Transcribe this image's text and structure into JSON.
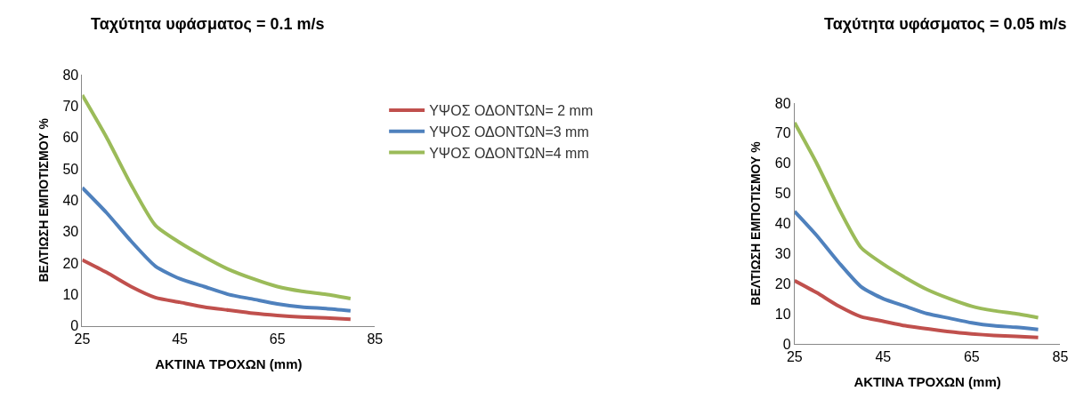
{
  "chart_data": [
    {
      "type": "line",
      "title": "Ταχύτητα υφάσματος = 0.1 m/s",
      "xlabel": "ΑΚΤΙΝΑ ΤΡΟΧΩΝ (mm)",
      "ylabel": "ΒΕΛΤΙΩΣΗ ΕΜΠΟΤΙΣΜΟΥ %",
      "x": [
        25,
        30,
        35,
        40,
        45,
        50,
        55,
        60,
        65,
        70,
        75,
        80
      ],
      "xlim": [
        25,
        85
      ],
      "xticks": [
        25,
        45,
        65,
        85
      ],
      "ylim": [
        0,
        80
      ],
      "yticks": [
        0,
        10,
        20,
        30,
        40,
        50,
        60,
        70,
        80
      ],
      "grid": false,
      "legend": "right",
      "marker": "none",
      "line_style": "solid",
      "series": [
        {
          "name": "ΥΨΟΣ ΟΔΟΝΤΩΝ= 2 mm",
          "color": "#c0504d",
          "values": [
            21,
            17,
            12.5,
            9,
            7.5,
            6,
            5,
            4,
            3.3,
            2.8,
            2.5,
            2.1
          ]
        },
        {
          "name": "ΥΨΟΣ ΟΔΟΝΤΩΝ=3 mm",
          "color": "#4f81bd",
          "values": [
            44,
            36,
            27,
            19,
            15,
            12.5,
            10,
            8.5,
            7,
            6,
            5.5,
            4.8
          ]
        },
        {
          "name": "ΥΨΟΣ ΟΔΟΝΤΩΝ=4 mm",
          "color": "#9bbb59",
          "values": [
            73.5,
            60,
            45,
            32,
            26.5,
            22,
            18,
            15,
            12.5,
            11,
            10,
            8.7
          ]
        }
      ]
    },
    {
      "type": "line",
      "title": "Ταχύτητα υφάσματος = 0.05 m/s",
      "xlabel": "ΑΚΤΙΝΑ ΤΡΟΧΩΝ (mm)",
      "ylabel": "ΒΕΛΤΙΩΣΗ ΕΜΠΟΤΙΣΜΟΥ %",
      "x": [
        25,
        30,
        35,
        40,
        45,
        50,
        55,
        60,
        65,
        70,
        75,
        80
      ],
      "xlim": [
        25,
        85
      ],
      "xticks": [
        25,
        45,
        65,
        85
      ],
      "ylim": [
        0,
        80
      ],
      "yticks": [
        0,
        10,
        20,
        30,
        40,
        50,
        60,
        70,
        80
      ],
      "grid": false,
      "marker": "none",
      "line_style": "solid",
      "series": [
        {
          "color": "#c0504d",
          "values": [
            21,
            17,
            12.5,
            9,
            7.5,
            6,
            5,
            4,
            3.3,
            2.8,
            2.5,
            2.1
          ]
        },
        {
          "color": "#4f81bd",
          "values": [
            44,
            36,
            27,
            19,
            15,
            12.5,
            10,
            8.5,
            7,
            6,
            5.5,
            4.8
          ]
        },
        {
          "color": "#9bbb59",
          "values": [
            73.5,
            60,
            45,
            32,
            26.5,
            22,
            18,
            15,
            12.5,
            11,
            10,
            8.7
          ]
        }
      ]
    }
  ]
}
